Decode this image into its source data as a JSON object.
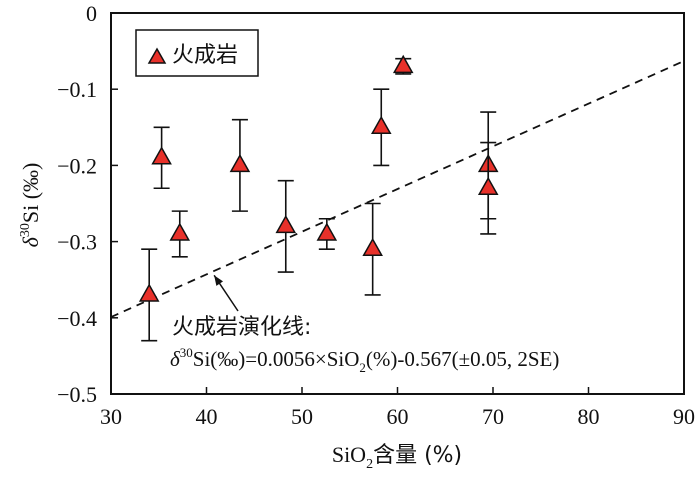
{
  "chart_data": {
    "type": "scatter",
    "title": "",
    "xlabel": {
      "main": "SiO",
      "sub": "2",
      "rest": "含量 (%)"
    },
    "ylabel": {
      "delta": "δ",
      "sup": "30",
      "rest": "Si (‰)"
    },
    "xlim": [
      30,
      90
    ],
    "ylim": [
      -0.5,
      0
    ],
    "x_ticks": [
      30,
      40,
      50,
      60,
      70,
      80,
      90
    ],
    "x_tick_labels": [
      "30",
      "40",
      "50",
      "60",
      "70",
      "80",
      "90"
    ],
    "y_ticks": [
      0,
      -0.1,
      -0.2,
      -0.3,
      -0.4,
      -0.5
    ],
    "y_tick_labels": [
      "0",
      "−0.1",
      "−0.2",
      "−0.3",
      "−0.4",
      "−0.5"
    ],
    "grid": false,
    "legend": {
      "position": "top-left",
      "entries": [
        "火成岩"
      ]
    },
    "series": [
      {
        "name": "火成岩",
        "marker": "triangle",
        "color": "#e8312a",
        "points": [
          {
            "x": 34.0,
            "y": -0.37,
            "ylow": -0.43,
            "yhigh": -0.31
          },
          {
            "x": 35.3,
            "y": -0.19,
            "ylow": -0.23,
            "yhigh": -0.15
          },
          {
            "x": 37.2,
            "y": -0.29,
            "ylow": -0.32,
            "yhigh": -0.26
          },
          {
            "x": 43.5,
            "y": -0.2,
            "ylow": -0.26,
            "yhigh": -0.14
          },
          {
            "x": 48.3,
            "y": -0.28,
            "ylow": -0.34,
            "yhigh": -0.22
          },
          {
            "x": 52.6,
            "y": -0.29,
            "ylow": -0.31,
            "yhigh": -0.27
          },
          {
            "x": 57.4,
            "y": -0.31,
            "ylow": -0.37,
            "yhigh": -0.25
          },
          {
            "x": 58.3,
            "y": -0.15,
            "ylow": -0.2,
            "yhigh": -0.1
          },
          {
            "x": 60.6,
            "y": -0.07,
            "ylow": -0.08,
            "yhigh": -0.06
          },
          {
            "x": 69.5,
            "y": -0.2,
            "ylow": -0.27,
            "yhigh": -0.13
          },
          {
            "x": 69.5,
            "y": -0.23,
            "ylow": -0.29,
            "yhigh": -0.17
          }
        ]
      }
    ],
    "trend_line": {
      "slope": 0.0056,
      "intercept": -0.567,
      "style": "dashed"
    },
    "annotation": {
      "line1": "火成岩演化线:",
      "eq_delta": "δ",
      "eq_sup": "30",
      "eq_part1": "Si(‰)=0.0056×SiO",
      "eq_sub": "2",
      "eq_part2": "(%)-0.567(±0.05, 2SE)",
      "arrow_target": {
        "x": 40.8,
        "y": -0.339
      }
    }
  }
}
